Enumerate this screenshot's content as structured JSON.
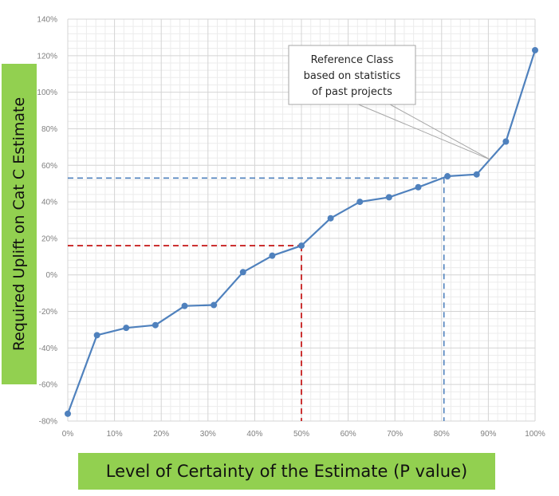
{
  "chart_data": {
    "type": "line",
    "xlabel": "Level of Certainty of the Estimate (P value)",
    "ylabel": "Required Uplift on Cat C Estimate",
    "xlim": [
      0,
      100
    ],
    "ylim": [
      -80,
      140
    ],
    "x_ticks": [
      "0%",
      "10%",
      "20%",
      "30%",
      "40%",
      "50%",
      "60%",
      "70%",
      "80%",
      "90%",
      "100%"
    ],
    "y_ticks": [
      "-80%",
      "-60%",
      "-40%",
      "-20%",
      "0%",
      "20%",
      "40%",
      "60%",
      "80%",
      "100%",
      "120%",
      "140%"
    ],
    "grid": true,
    "series": [
      {
        "color": "#4f81bd",
        "x": [
          0,
          6.25,
          12.5,
          18.75,
          25,
          31.25,
          37.5,
          43.75,
          50,
          56.25,
          62.5,
          68.75,
          75,
          81.25,
          87.5,
          93.75,
          100
        ],
        "y": [
          -76,
          -33,
          -29,
          -27.5,
          -17,
          -16.5,
          1.5,
          10.5,
          16,
          31,
          40,
          42.5,
          48,
          54,
          55,
          73,
          123
        ]
      }
    ],
    "reference_lines": [
      {
        "color": "#c00000",
        "x": 50,
        "y": 16
      },
      {
        "color": "#4f81bd",
        "x": 80.5,
        "y": 53
      }
    ],
    "annotation": {
      "lines": [
        "Reference Class",
        "based on statistics",
        "of past projects"
      ],
      "target_x": 90.5,
      "target_y": 63
    }
  }
}
